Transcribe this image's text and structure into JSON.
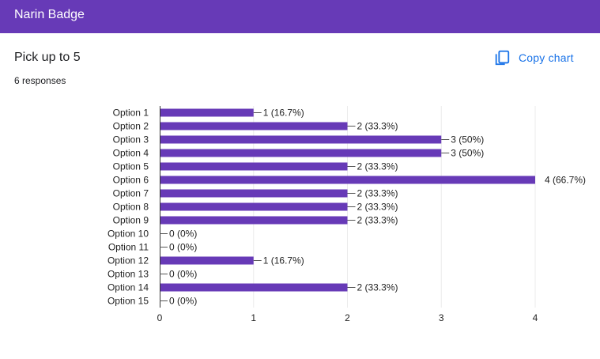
{
  "header": {
    "title": "Narin Badge"
  },
  "question": {
    "title": "Pick up to 5",
    "responses": "6 responses"
  },
  "actions": {
    "copy_chart_label": "Copy chart",
    "copy_icon": "copy-icon"
  },
  "colors": {
    "accent": "#673ab7",
    "bar": "#673ab7",
    "link": "#1a73e8"
  },
  "chart_data": {
    "type": "bar",
    "orientation": "horizontal",
    "categories": [
      "Option 1",
      "Option 2",
      "Option 3",
      "Option 4",
      "Option 5",
      "Option 6",
      "Option 7",
      "Option 8",
      "Option 9",
      "Option 10",
      "Option 11",
      "Option 12",
      "Option 13",
      "Option 14",
      "Option 15"
    ],
    "values": [
      1,
      2,
      3,
      3,
      2,
      4,
      2,
      2,
      2,
      0,
      0,
      1,
      0,
      2,
      0
    ],
    "labels": [
      "1 (16.7%)",
      "2 (33.3%)",
      "3 (50%)",
      "3 (50%)",
      "2 (33.3%)",
      "4 (66.7%)",
      "2 (33.3%)",
      "2 (33.3%)",
      "2 (33.3%)",
      "0 (0%)",
      "0 (0%)",
      "1 (16.7%)",
      "0 (0%)",
      "2 (33.3%)",
      "0 (0%)"
    ],
    "xticks": [
      "0",
      "1",
      "2",
      "3",
      "4"
    ],
    "xlim": [
      0,
      4
    ],
    "grid": true
  }
}
